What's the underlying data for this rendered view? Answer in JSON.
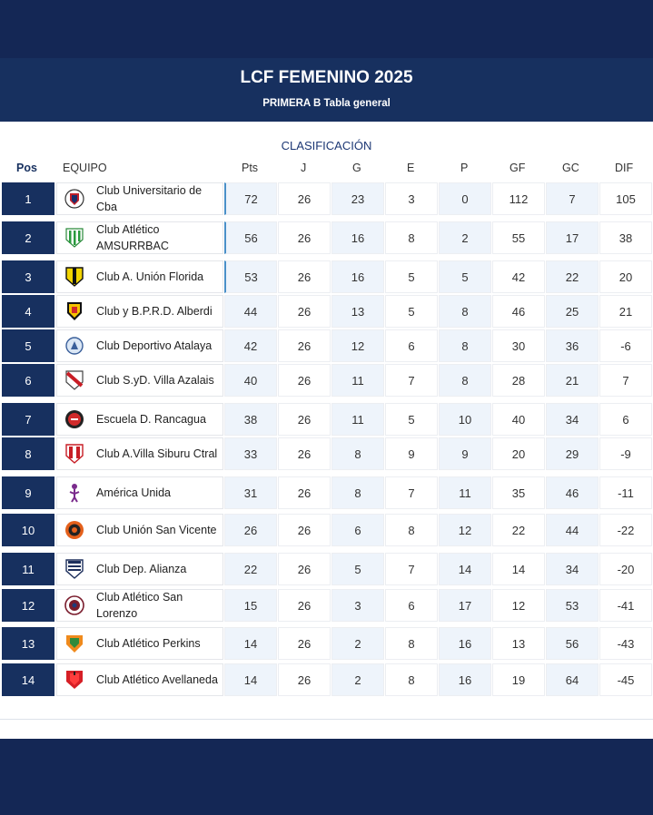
{
  "header": {
    "title": "LCF FEMENINO 2025",
    "subtitle": "PRIMERA B Tabla general"
  },
  "table": {
    "section_label": "CLASIFICACIÓN",
    "columns": {
      "pos": "Pos",
      "team": "EQUIPO",
      "pts": "Pts",
      "j": "J",
      "g": "G",
      "e": "E",
      "p": "P",
      "gf": "GF",
      "gc": "GC",
      "dif": "DIF"
    },
    "rows": [
      {
        "pos": "1",
        "team": "Club Universitario de Cba",
        "pts": "72",
        "j": "26",
        "g": "23",
        "e": "3",
        "p": "0",
        "gf": "112",
        "gc": "7",
        "dif": "105",
        "crest": "shield-red-blue-icon"
      },
      {
        "pos": "2",
        "team": "Club Atlético AMSURRBAC",
        "pts": "56",
        "j": "26",
        "g": "16",
        "e": "8",
        "p": "2",
        "gf": "55",
        "gc": "17",
        "dif": "38",
        "crest": "shield-green-stripes-icon"
      },
      {
        "pos": "3",
        "team": "Club A. Unión Florida",
        "pts": "53",
        "j": "26",
        "g": "16",
        "e": "5",
        "p": "5",
        "gf": "42",
        "gc": "22",
        "dif": "20",
        "crest": "shield-yellow-black-icon"
      },
      {
        "pos": "4",
        "team": "Club y B.P.R.D. Alberdi",
        "pts": "44",
        "j": "26",
        "g": "13",
        "e": "5",
        "p": "8",
        "gf": "46",
        "gc": "25",
        "dif": "21",
        "crest": "shield-yellow-red-icon"
      },
      {
        "pos": "5",
        "team": "Club Deportivo Atalaya",
        "pts": "42",
        "j": "26",
        "g": "12",
        "e": "6",
        "p": "8",
        "gf": "30",
        "gc": "36",
        "dif": "-6",
        "crest": "emblem-blue-icon"
      },
      {
        "pos": "6",
        "team": "Club S.yD. Villa Azalais",
        "pts": "40",
        "j": "26",
        "g": "11",
        "e": "7",
        "p": "8",
        "gf": "28",
        "gc": "21",
        "dif": "7",
        "crest": "shield-red-sash-icon"
      },
      {
        "pos": "7",
        "team": "Escuela D. Rancagua",
        "pts": "38",
        "j": "26",
        "g": "11",
        "e": "5",
        "p": "10",
        "gf": "40",
        "gc": "34",
        "dif": "6",
        "crest": "round-red-black-icon"
      },
      {
        "pos": "8",
        "team": "Club A.Villa Siburu Ctral",
        "pts": "33",
        "j": "26",
        "g": "8",
        "e": "9",
        "p": "9",
        "gf": "20",
        "gc": "29",
        "dif": "-9",
        "crest": "shield-red-white-icon"
      },
      {
        "pos": "9",
        "team": "América Unida",
        "pts": "31",
        "j": "26",
        "g": "8",
        "e": "7",
        "p": "11",
        "gf": "35",
        "gc": "46",
        "dif": "-11",
        "crest": "figure-purple-icon"
      },
      {
        "pos": "10",
        "team": "Club Unión San Vicente",
        "pts": "26",
        "j": "26",
        "g": "6",
        "e": "8",
        "p": "12",
        "gf": "22",
        "gc": "44",
        "dif": "-22",
        "crest": "round-orange-icon"
      },
      {
        "pos": "11",
        "team": "Club Dep. Alianza",
        "pts": "22",
        "j": "26",
        "g": "5",
        "e": "7",
        "p": "14",
        "gf": "14",
        "gc": "34",
        "dif": "-20",
        "crest": "shield-navy-stripes-icon"
      },
      {
        "pos": "12",
        "team": "Club Atlético San Lorenzo",
        "pts": "15",
        "j": "26",
        "g": "3",
        "e": "6",
        "p": "17",
        "gf": "12",
        "gc": "53",
        "dif": "-41",
        "crest": "round-maroon-icon"
      },
      {
        "pos": "13",
        "team": "Club Atlético Perkins",
        "pts": "14",
        "j": "26",
        "g": "2",
        "e": "8",
        "p": "16",
        "gf": "13",
        "gc": "56",
        "dif": "-43",
        "crest": "shield-orange-green-icon"
      },
      {
        "pos": "14",
        "team": "Club Atlético Avellaneda",
        "pts": "14",
        "j": "26",
        "g": "2",
        "e": "8",
        "p": "16",
        "gf": "19",
        "gc": "64",
        "dif": "-45",
        "crest": "shield-red-icon"
      }
    ]
  },
  "colors": {
    "navy": "#17305f",
    "accent_blue": "#4a90c8",
    "shade": "#eef4fb"
  }
}
